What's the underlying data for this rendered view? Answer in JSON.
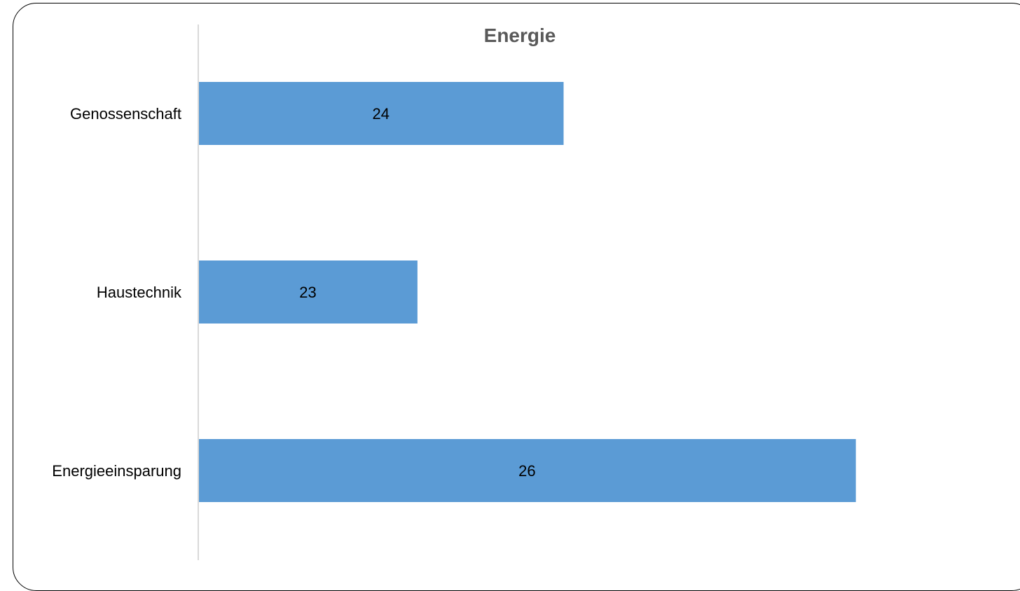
{
  "chart_data": {
    "type": "bar",
    "orientation": "horizontal",
    "title": "Energie",
    "xlabel": "",
    "ylabel": "",
    "categories": [
      "Genossenschaft",
      "Haustechnik",
      "Energieeinsparung"
    ],
    "values": [
      24,
      23,
      26
    ],
    "xlim": [
      21.5,
      26.5
    ],
    "grid": false,
    "legend": "none",
    "data_labels": true,
    "colors": {
      "bar": "#5b9bd5",
      "axis": "#d9d9d9",
      "title": "#595959"
    }
  }
}
